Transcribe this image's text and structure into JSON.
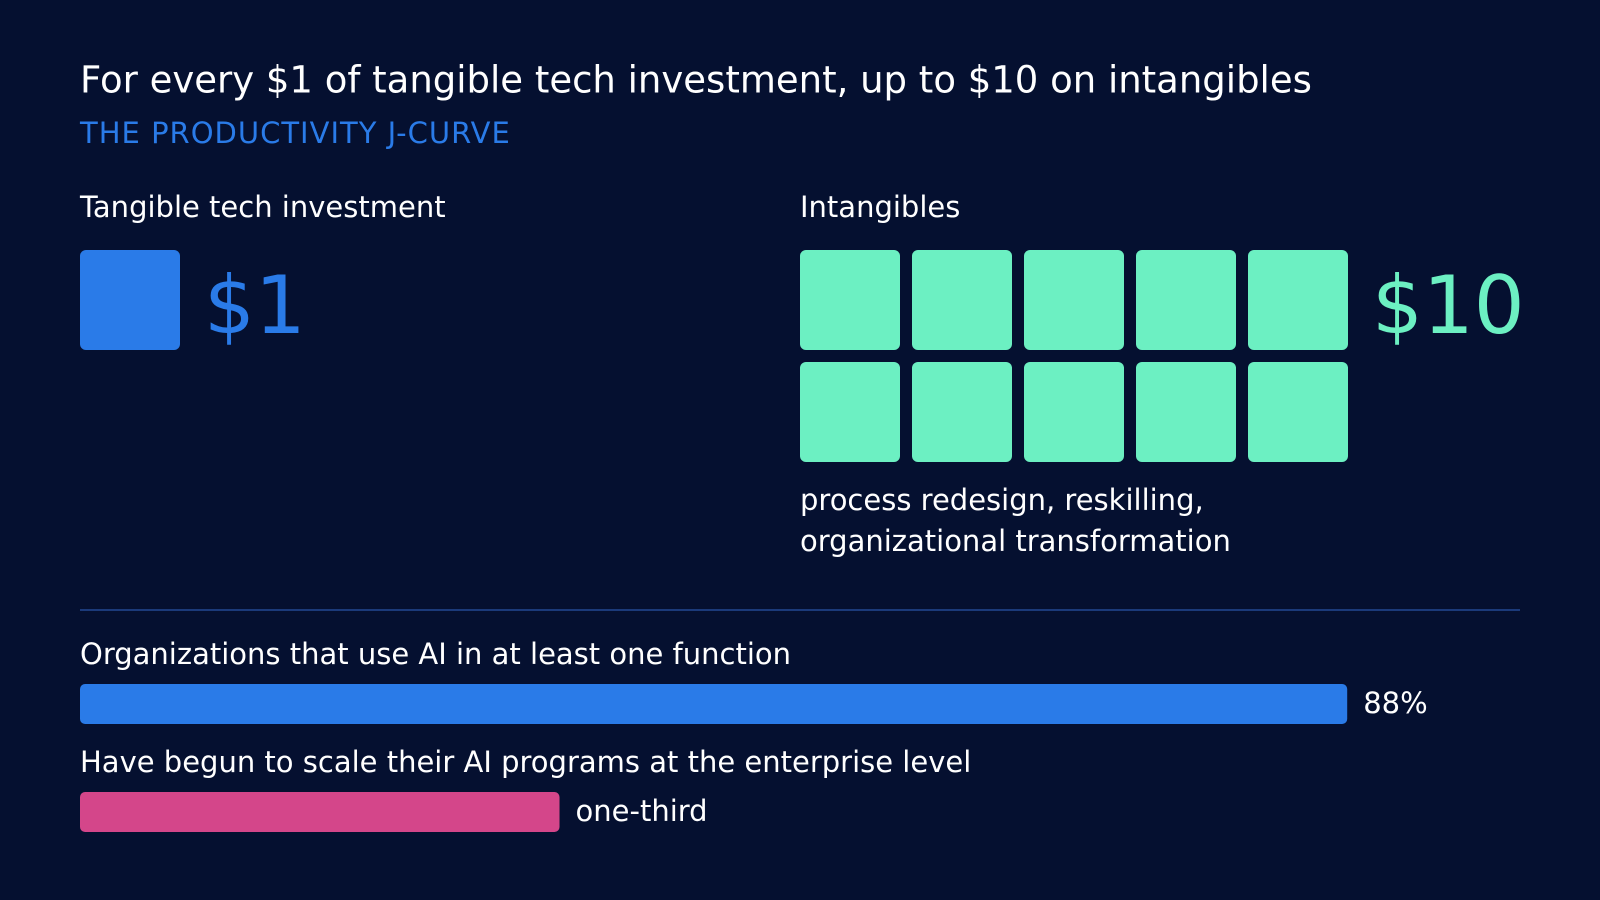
{
  "header": {
    "title": "For every $1 of tangible tech investment, up to $10 on intangibles",
    "subtitle": "THE PRODUCTIVITY J-CURVE"
  },
  "panels": [
    {
      "label": "Tangible tech investment",
      "value": 1,
      "value_label": "$1",
      "color": "#2a7be8"
    },
    {
      "label": "Intangibles",
      "value": 10,
      "value_label": "$10",
      "color": "#6cf0c2",
      "note": [
        "process redesign, reskilling,",
        "organizational transformation"
      ]
    }
  ],
  "bars": {
    "xlim": [
      0,
      100
    ],
    "items": [
      {
        "label": "Organizations that use AI in at least one function",
        "value": 88,
        "value_label": "88%",
        "color": "#2a7be8"
      },
      {
        "label": "Have begun to scale their AI programs at the enterprise level",
        "value": 33.3,
        "value_label": "one-third",
        "color": "#d4468a"
      }
    ]
  }
}
